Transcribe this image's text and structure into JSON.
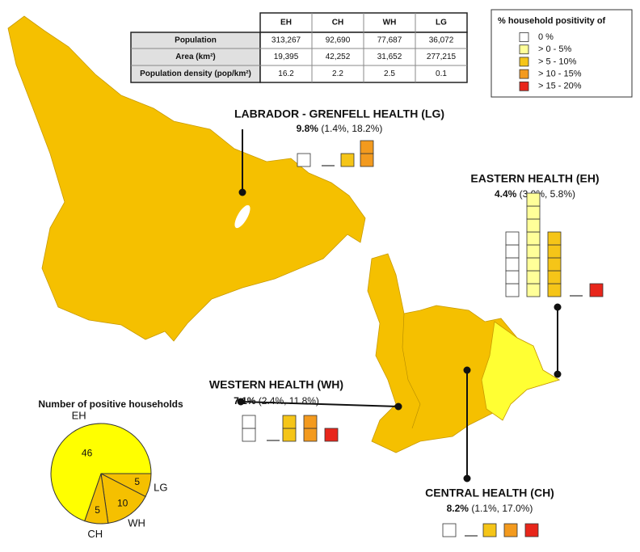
{
  "table": {
    "columns": [
      "EH",
      "CH",
      "WH",
      "LG"
    ],
    "rows": [
      {
        "label": "Population",
        "cells": [
          "313,267",
          "92,690",
          "77,687",
          "36,072"
        ]
      },
      {
        "label": "Area (km²)",
        "cells": [
          "19,395",
          "42,252",
          "31,652",
          "277,215"
        ]
      },
      {
        "label": "Population density (pop/km²)",
        "cells": [
          "16.2",
          "2.2",
          "2.5",
          "0.1"
        ]
      }
    ]
  },
  "legend": {
    "title": "% household positivity of",
    "items": [
      {
        "label": "0 %",
        "color": "#ffffff"
      },
      {
        "label": "> 0 - 5%",
        "color": "#ffff99"
      },
      {
        "label": "> 5 - 10%",
        "color": "#f5c518"
      },
      {
        "label": "> 10 - 15%",
        "color": "#f39a1e"
      },
      {
        "label": "> 15 - 20%",
        "color": "#e8261b"
      }
    ]
  },
  "regions": [
    {
      "name": "LABRADOR - GRENFELL HEALTH (LG)",
      "rate": "9.8%",
      "interval": "(1.4%, 18.2%)",
      "counts": [
        1,
        0,
        1,
        2,
        null
      ]
    },
    {
      "name": "EASTERN HEALTH (EH)",
      "rate": "4.4%",
      "interval": "(3.0%, 5.8%)",
      "counts": [
        5,
        8,
        5,
        0,
        1
      ]
    },
    {
      "name": "WESTERN HEALTH (WH)",
      "rate": "7.1%",
      "interval": "(2.4%, 11.8%)",
      "counts": [
        2,
        0,
        2,
        2,
        1
      ]
    },
    {
      "name": "CENTRAL HEALTH (CH)",
      "rate": "8.2%",
      "interval": "(1.1%, 17.0%)",
      "counts": [
        1,
        0,
        1,
        1,
        1
      ]
    }
  ],
  "pie": {
    "title": "Number of positive households",
    "slices": [
      {
        "name": "LG",
        "value": 5,
        "color": "#f5c000"
      },
      {
        "name": "WH",
        "value": 10,
        "color": "#f5c000"
      },
      {
        "name": "CH",
        "value": 5,
        "color": "#f5c000"
      },
      {
        "name": "EH",
        "value": 46,
        "color": "#ffff00"
      }
    ]
  }
}
